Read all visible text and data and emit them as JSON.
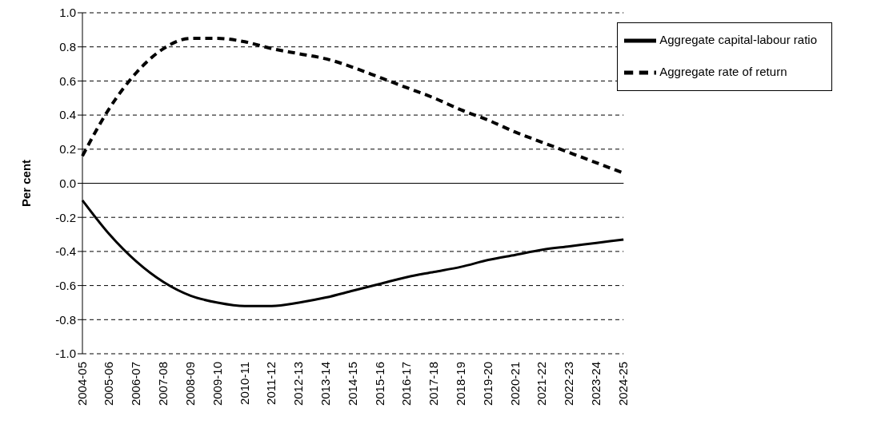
{
  "chart_data": {
    "type": "line",
    "ylabel": "Per cent",
    "categories": [
      "2004-05",
      "2005-06",
      "2006-07",
      "2007-08",
      "2008-09",
      "2009-10",
      "2010-11",
      "2011-12",
      "2012-13",
      "2013-14",
      "2014-15",
      "2015-16",
      "2016-17",
      "2017-18",
      "2018-19",
      "2019-20",
      "2020-21",
      "2021-22",
      "2022-23",
      "2023-24",
      "2024-25"
    ],
    "series": [
      {
        "name": "Aggregate capital-labour ratio",
        "color": "#000000",
        "line_style": "solid",
        "values": [
          -0.1,
          -0.3,
          -0.46,
          -0.58,
          -0.66,
          -0.7,
          -0.72,
          -0.72,
          -0.7,
          -0.67,
          -0.63,
          -0.59,
          -0.55,
          -0.52,
          -0.49,
          -0.45,
          -0.42,
          -0.39,
          -0.37,
          -0.35,
          -0.33
        ]
      },
      {
        "name": "Aggregate rate of return",
        "color": "#000000",
        "line_style": "dashed",
        "values": [
          0.16,
          0.44,
          0.65,
          0.79,
          0.85,
          0.85,
          0.83,
          0.79,
          0.76,
          0.73,
          0.68,
          0.62,
          0.56,
          0.5,
          0.43,
          0.37,
          0.3,
          0.24,
          0.18,
          0.12,
          0.06
        ]
      }
    ],
    "ylim": [
      -1.0,
      1.0
    ],
    "yticks": [
      {
        "value": -1,
        "label": "-1.0"
      },
      {
        "value": -0.8,
        "label": "-0.8"
      },
      {
        "value": -0.6,
        "label": "-0.6"
      },
      {
        "value": -0.4,
        "label": "-0.4"
      },
      {
        "value": -0.2,
        "label": "-0.2"
      },
      {
        "value": 0,
        "label": "0.0"
      },
      {
        "value": 0.2,
        "label": "0.2"
      },
      {
        "value": 0.4,
        "label": "0.4"
      },
      {
        "value": 0.6,
        "label": "0.6"
      },
      {
        "value": 0.8,
        "label": "0.8"
      },
      {
        "value": 1,
        "label": "1.0"
      }
    ],
    "grid": "y",
    "legend": "top right",
    "marker": "none"
  }
}
